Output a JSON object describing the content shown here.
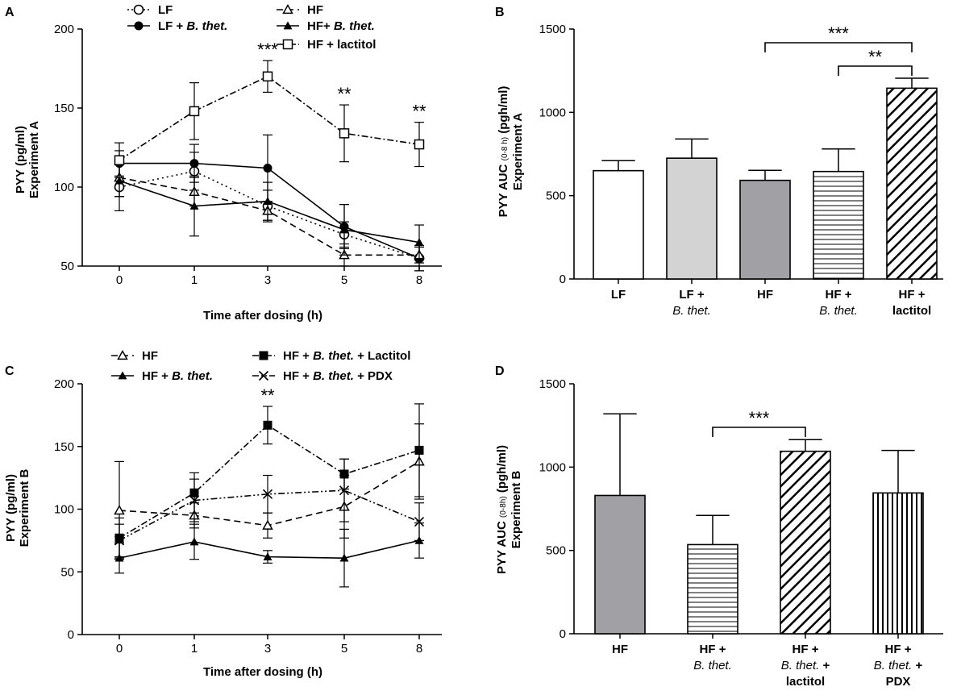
{
  "panels": {
    "A": {
      "letter": "A",
      "type": "line",
      "ylabel_line1": "PYY (pg/ml)",
      "ylabel_line2": "Experiment A",
      "xlabel": "Time after dosing (h)",
      "ylim": [
        50,
        200
      ],
      "yticks": [
        "50",
        "100",
        "150",
        "200"
      ],
      "xticks": [
        "0",
        "1",
        "3",
        "5",
        "8"
      ],
      "legend": [
        {
          "pre": "LF",
          "ital": "",
          "post": ""
        },
        {
          "pre": "LF + ",
          "ital": "B. thet.",
          "post": ""
        },
        {
          "pre": "HF",
          "ital": "",
          "post": ""
        },
        {
          "pre": "HF+ ",
          "ital": "B. thet.",
          "post": ""
        },
        {
          "pre": "HF + lactitol",
          "ital": "",
          "post": ""
        }
      ],
      "annotations": [
        "***",
        "**",
        "**"
      ]
    },
    "B": {
      "letter": "B",
      "type": "bar",
      "ylabel_main": "PYY AUC",
      "ylabel_sub": "(0-8 h)",
      "ylabel_unit": "(pgh/ml)",
      "ylabel_line2": "Experiment A",
      "ylim": [
        0,
        1500
      ],
      "yticks": [
        "0",
        "500",
        "1000",
        "1500"
      ],
      "categories": [
        {
          "line1": "LF",
          "line2": ""
        },
        {
          "line1": "LF +",
          "line2": "B. thet."
        },
        {
          "line1": "HF",
          "line2": ""
        },
        {
          "line1": "HF +",
          "line2": "B. thet."
        },
        {
          "line1": "HF +",
          "line2": "lactitol"
        }
      ],
      "sig": [
        "***",
        "**"
      ]
    },
    "C": {
      "letter": "C",
      "type": "line",
      "ylabel_line1": "PYY (pg/ml)",
      "ylabel_line2": "Experiment B",
      "xlabel": "Time after dosing (h)",
      "ylim": [
        0,
        200
      ],
      "yticks": [
        "0",
        "50",
        "100",
        "150",
        "200"
      ],
      "xticks": [
        "0",
        "1",
        "3",
        "5",
        "8"
      ],
      "legend": [
        {
          "pre": "HF",
          "ital": "",
          "post": ""
        },
        {
          "pre": "HF + ",
          "ital": "B. thet.",
          "post": ""
        },
        {
          "pre": "HF + ",
          "ital": "B. thet.",
          "post": " + Lactitol"
        },
        {
          "pre": "HF + ",
          "ital": "B. thet.",
          "post": " + PDX"
        }
      ],
      "annotations": [
        "**"
      ]
    },
    "D": {
      "letter": "D",
      "type": "bar",
      "ylabel_main": "PYY AUC",
      "ylabel_sub": "(0-8h)",
      "ylabel_unit": "(pgh/ml)",
      "ylabel_line2": "Experiment B",
      "ylim": [
        0,
        1500
      ],
      "yticks": [
        "0",
        "500",
        "1000",
        "1500"
      ],
      "categories": [
        {
          "line1": "HF",
          "line2": "",
          "line3": ""
        },
        {
          "line1": "HF +",
          "line2": "B. thet.",
          "line3": ""
        },
        {
          "line1": "HF +",
          "line2": "B. thet. +",
          "line3": "lactitol"
        },
        {
          "line1": "HF +",
          "line2": "B. thet. +",
          "line3": "PDX"
        }
      ],
      "sig": [
        "***"
      ]
    }
  },
  "chart_data": [
    {
      "panel": "A",
      "type": "line",
      "title": "",
      "xlabel": "Time after dosing (h)",
      "ylabel": "PYY (pg/ml) Experiment A",
      "x": [
        0,
        1,
        3,
        5,
        8
      ],
      "ylim": [
        50,
        200
      ],
      "series": [
        {
          "name": "LF",
          "marker": "open-circle",
          "dash": "dot",
          "values": [
            100,
            110,
            88,
            70,
            55
          ],
          "err": [
            15,
            12,
            10,
            8,
            8
          ]
        },
        {
          "name": "LF + B. thet.",
          "marker": "filled-circle",
          "dash": "solid",
          "values": [
            115,
            115,
            112,
            75,
            55
          ],
          "err": [
            8,
            12,
            21,
            14,
            8
          ]
        },
        {
          "name": "HF",
          "marker": "open-triangle",
          "dash": "dash",
          "values": [
            106,
            97,
            85,
            57,
            57
          ],
          "err": [
            12,
            9,
            6,
            7,
            5
          ]
        },
        {
          "name": "HF+ B. thet.",
          "marker": "filled-triangle",
          "dash": "solid",
          "values": [
            104,
            88,
            91,
            73,
            65
          ],
          "err": [
            10,
            19,
            12,
            16,
            11
          ]
        },
        {
          "name": "HF + lactitol",
          "marker": "open-square",
          "dash": "dashdot",
          "values": [
            117,
            148,
            170,
            134,
            127
          ],
          "err": [
            11,
            18,
            10,
            18,
            14
          ]
        }
      ],
      "significance": [
        {
          "x": 3,
          "label": "***"
        },
        {
          "x": 5,
          "label": "**"
        },
        {
          "x": 8,
          "label": "**"
        }
      ]
    },
    {
      "panel": "B",
      "type": "bar",
      "title": "",
      "ylabel": "PYY AUC (0-8 h) (pgh/ml) Experiment A",
      "categories": [
        "LF",
        "LF + B. thet.",
        "HF",
        "HF + B. thet.",
        "HF + lactitol"
      ],
      "values": [
        650,
        725,
        592,
        645,
        1145
      ],
      "err": [
        60,
        115,
        60,
        135,
        60
      ],
      "fills": [
        "white",
        "light-grey",
        "grey",
        "horizontal-lines",
        "diagonal-hatch"
      ],
      "ylim": [
        0,
        1500
      ],
      "significance": [
        {
          "from": "HF",
          "to": "HF + lactitol",
          "label": "***"
        },
        {
          "from": "HF + B. thet.",
          "to": "HF + lactitol",
          "label": "**"
        }
      ]
    },
    {
      "panel": "C",
      "type": "line",
      "title": "",
      "xlabel": "Time after dosing (h)",
      "ylabel": "PYY (pg/ml) Experiment B",
      "x": [
        0,
        1,
        3,
        5,
        8
      ],
      "ylim": [
        0,
        200
      ],
      "series": [
        {
          "name": "HF",
          "marker": "open-triangle",
          "dash": "dash",
          "values": [
            99,
            95,
            87,
            102,
            138
          ],
          "err": [
            39,
            10,
            10,
            25,
            30
          ]
        },
        {
          "name": "HF + B. thet.",
          "marker": "filled-triangle",
          "dash": "solid",
          "values": [
            61,
            74,
            62,
            61,
            75
          ],
          "err": [
            12,
            14,
            5,
            23,
            14
          ]
        },
        {
          "name": "HF + B. thet. + Lactitol",
          "marker": "filled-square",
          "dash": "dashdot",
          "values": [
            77,
            113,
            167,
            128,
            147
          ],
          "err": [
            16,
            16,
            15,
            12,
            37
          ]
        },
        {
          "name": "HF + B. thet. + PDX",
          "marker": "cross",
          "dash": "dashdotdot",
          "values": [
            75,
            107,
            112,
            115,
            90
          ],
          "err": [
            13,
            17,
            15,
            25,
            15
          ]
        }
      ],
      "significance": [
        {
          "x": 3,
          "label": "**"
        }
      ]
    },
    {
      "panel": "D",
      "type": "bar",
      "title": "",
      "ylabel": "PYY AUC (0-8h) (pgh/ml) Experiment B",
      "categories": [
        "HF",
        "HF + B. thet.",
        "HF + B. thet. + lactitol",
        "HF + B. thet. + PDX"
      ],
      "values": [
        830,
        535,
        1095,
        845
      ],
      "err": [
        490,
        175,
        70,
        255
      ],
      "fills": [
        "grey",
        "horizontal-lines",
        "diagonal-hatch",
        "vertical-lines"
      ],
      "ylim": [
        0,
        1500
      ],
      "significance": [
        {
          "from": "HF + B. thet.",
          "to": "HF + B. thet. + lactitol",
          "label": "***"
        }
      ]
    }
  ]
}
